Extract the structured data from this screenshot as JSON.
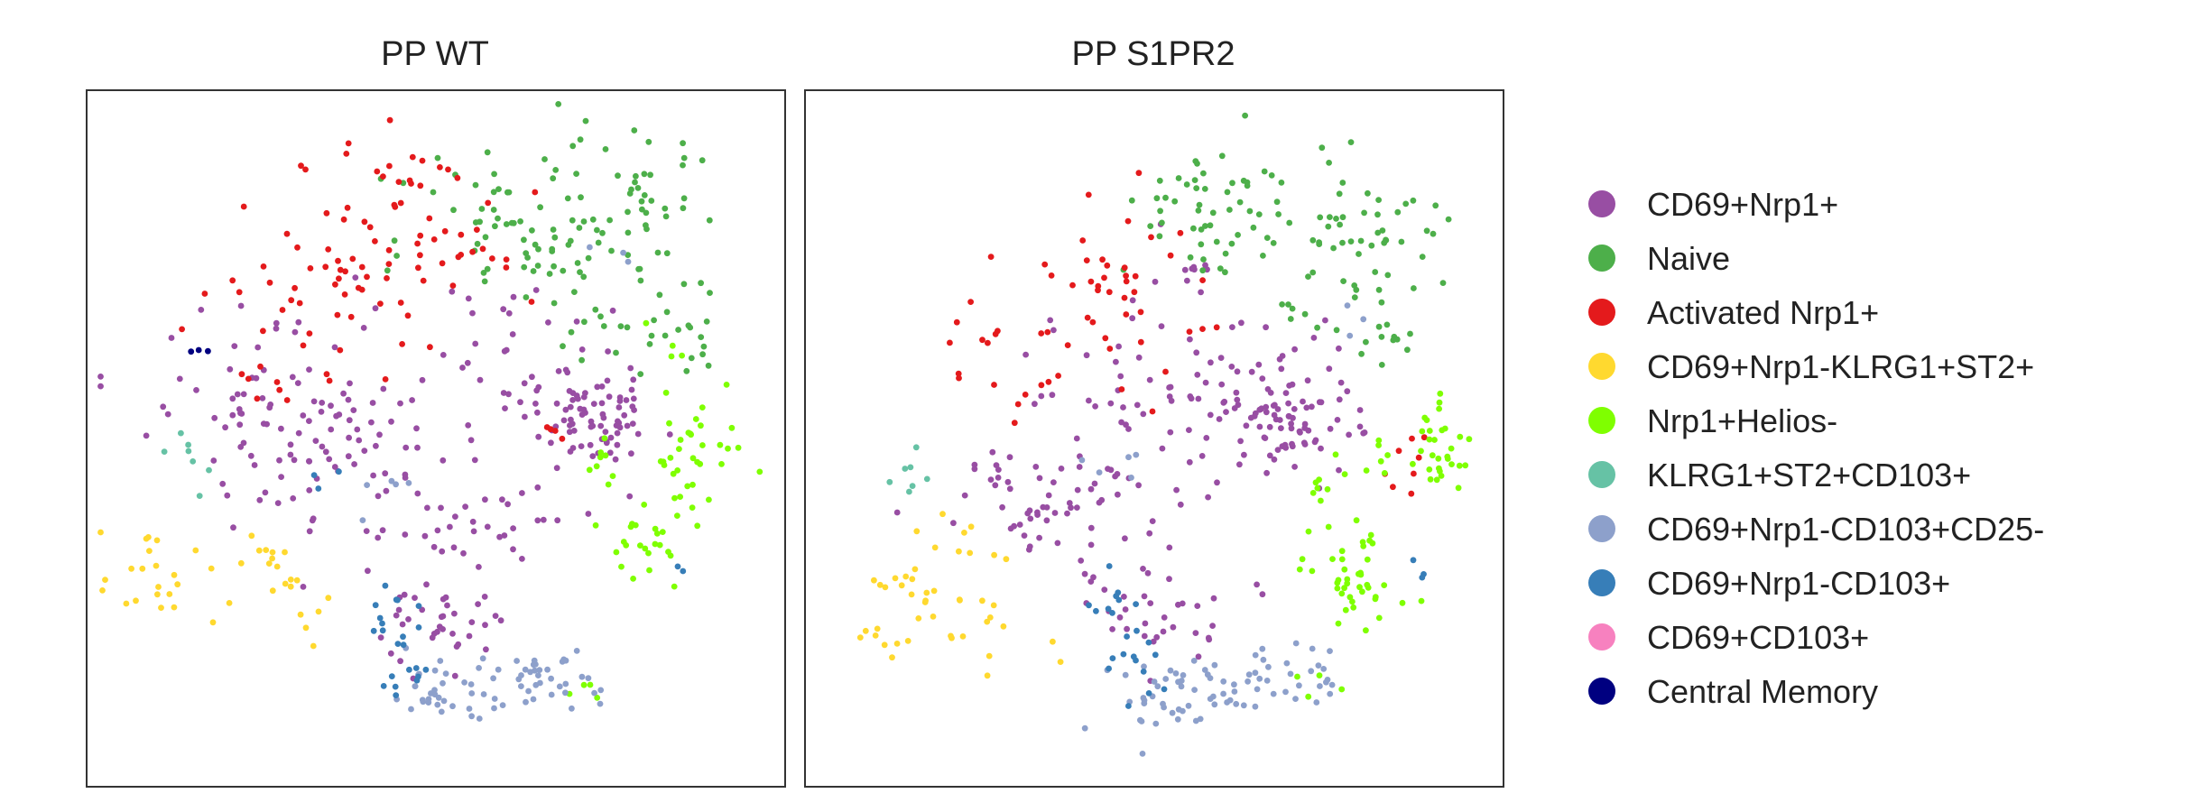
{
  "chart_data": {
    "type": "scatter",
    "panels": [
      {
        "title": "PP WT",
        "clusters": [
          {
            "name": "CD69+Nrp1+",
            "blobs": [
              [
                19,
                43,
                45,
                12,
                8
              ],
              [
                34,
                52,
                30,
                8,
                6
              ],
              [
                52,
                62,
                45,
                14,
                7
              ],
              [
                70,
                46,
                35,
                6,
                4
              ],
              [
                75,
                47,
                45,
                8,
                7
              ],
              [
                41,
                45,
                25,
                12,
                10
              ],
              [
                58,
                35,
                25,
                10,
                8
              ],
              [
                29,
                58,
                10,
                6,
                5
              ],
              [
                48,
                75,
                20,
                6,
                5
              ],
              [
                51,
                78,
                15,
                5,
                4
              ]
            ]
          },
          {
            "name": "Naive",
            "blobs": [
              [
                60,
                17,
                60,
                10,
                8
              ],
              [
                80,
                17,
                45,
                8,
                8
              ],
              [
                86,
                33,
                15,
                3,
                5
              ],
              [
                76,
                36,
                12,
                7,
                4
              ],
              [
                68,
                27,
                10,
                6,
                6
              ]
            ]
          },
          {
            "name": "Activated Nrp1+",
            "blobs": [
              [
                40,
                26,
                55,
                11,
                9
              ],
              [
                45,
                13,
                20,
                12,
                4
              ],
              [
                57,
                23,
                10,
                4,
                4
              ],
              [
                30,
                42,
                8,
                6,
                3
              ],
              [
                22,
                29,
                6,
                6,
                4
              ],
              [
                67,
                48,
                4,
                2,
                2
              ]
            ]
          },
          {
            "name": "CD69+Nrp1-KLRG1+ST2+",
            "blobs": [
              [
                12,
                71,
                20,
                7,
                6
              ],
              [
                29,
                74,
                12,
                4,
                5
              ],
              [
                25,
                66,
                6,
                4,
                3
              ],
              [
                11,
                71,
                4,
                3,
                3
              ]
            ]
          },
          {
            "name": "Nrp1+Helios-",
            "blobs": [
              [
                75,
                53,
                8,
                3,
                3
              ],
              [
                88,
                51,
                25,
                4,
                6
              ],
              [
                80,
                65,
                25,
                5,
                5
              ],
              [
                81,
                55,
                6,
                3,
                3
              ],
              [
                83,
                39,
                5,
                3,
                4
              ],
              [
                70,
                86,
                4,
                4,
                2
              ]
            ]
          },
          {
            "name": "KLRG1+ST2+CD103+",
            "blobs": [
              [
                14,
                55,
                7,
                6,
                5
              ]
            ]
          },
          {
            "name": "CD69+Nrp1-CD103+CD25-",
            "blobs": [
              [
                53,
                87,
                35,
                6,
                3
              ],
              [
                68,
                85,
                25,
                5,
                3
              ],
              [
                62,
                83,
                10,
                6,
                3
              ],
              [
                42,
                57,
                5,
                5,
                3
              ],
              [
                73,
                23,
                3,
                3,
                3
              ]
            ]
          },
          {
            "name": "CD69+Nrp1-CD103+",
            "blobs": [
              [
                44,
                76,
                12,
                3,
                3
              ],
              [
                46,
                84,
                10,
                3,
                3
              ],
              [
                34,
                56,
                3,
                3,
                3
              ],
              [
                85,
                68,
                2,
                2,
                2
              ]
            ]
          },
          {
            "name": "CD69+CD103+",
            "blobs": []
          },
          {
            "name": "Central Memory",
            "blobs": [
              [
                18,
                37,
                3,
                4,
                2
              ]
            ]
          }
        ]
      },
      {
        "title": "PP S1PR2",
        "clusters": [
          {
            "name": "CD69+Nrp1+",
            "blobs": [
              [
                43,
                55,
                35,
                12,
                8
              ],
              [
                30,
                59,
                25,
                10,
                5
              ],
              [
                60,
                44,
                40,
                9,
                7
              ],
              [
                68,
                47,
                30,
                5,
                4
              ],
              [
                69,
                48,
                45,
                8,
                6
              ],
              [
                43,
                41,
                25,
                12,
                8
              ],
              [
                46,
                75,
                20,
                8,
                6
              ],
              [
                57,
                74,
                15,
                6,
                5
              ],
              [
                38,
                66,
                10,
                7,
                5
              ],
              [
                56,
                28,
                5,
                3,
                3
              ],
              [
                52,
                25,
                5,
                3,
                3
              ]
            ]
          },
          {
            "name": "Naive",
            "blobs": [
              [
                59,
                17,
                50,
                8,
                6
              ],
              [
                80,
                20,
                50,
                8,
                8
              ],
              [
                83,
                36,
                12,
                3,
                5
              ],
              [
                69,
                32,
                6,
                4,
                3
              ],
              [
                58,
                24,
                6,
                4,
                3
              ]
            ]
          },
          {
            "name": "Activated Nrp1+",
            "blobs": [
              [
                42,
                29,
                45,
                11,
                8
              ],
              [
                30,
                42,
                8,
                4,
                4
              ],
              [
                23,
                37,
                5,
                4,
                3
              ],
              [
                88,
                50,
                4,
                2,
                2
              ],
              [
                85,
                56,
                4,
                2,
                2
              ]
            ]
          },
          {
            "name": "CD69+Nrp1-KLRG1+ST2+",
            "blobs": [
              [
                14,
                73,
                25,
                5,
                6
              ],
              [
                26,
                76,
                12,
                5,
                5
              ],
              [
                23,
                63,
                5,
                2,
                3
              ],
              [
                31,
                81,
                4,
                4,
                3
              ]
            ]
          },
          {
            "name": "Nrp1+Helios-",
            "blobs": [
              [
                79,
                68,
                45,
                5,
                6
              ],
              [
                91,
                53,
                30,
                3,
                6
              ],
              [
                73,
                55,
                6,
                3,
                3
              ],
              [
                83,
                51,
                5,
                3,
                3
              ],
              [
                74,
                85,
                4,
                4,
                2
              ]
            ]
          },
          {
            "name": "KLRG1+ST2+CD103+",
            "blobs": [
              [
                16,
                55,
                7,
                4,
                3
              ]
            ]
          },
          {
            "name": "CD69+Nrp1-CD103+CD25-",
            "blobs": [
              [
                52,
                87,
                40,
                7,
                4
              ],
              [
                71,
                84,
                25,
                5,
                3
              ],
              [
                61,
                86,
                12,
                5,
                3
              ],
              [
                44,
                55,
                5,
                5,
                3
              ],
              [
                79,
                33,
                3,
                3,
                3
              ]
            ]
          },
          {
            "name": "CD69+Nrp1-CD103+",
            "blobs": [
              [
                45,
                74,
                12,
                4,
                3
              ],
              [
                45,
                84,
                10,
                4,
                3
              ],
              [
                87,
                70,
                3,
                2,
                2
              ]
            ]
          },
          {
            "name": "CD69+CD103+",
            "blobs": []
          },
          {
            "name": "Central Memory",
            "blobs": []
          }
        ]
      }
    ],
    "xlabel": "",
    "ylabel": "",
    "xlim": [
      0,
      100
    ],
    "ylim": [
      0,
      100
    ],
    "grid": false,
    "axes_ticks": false,
    "legend_position": "right",
    "legend": [
      {
        "name": "CD69+Nrp1+",
        "color": "#984ea3"
      },
      {
        "name": "Naive",
        "color": "#4daf4a"
      },
      {
        "name": "Activated Nrp1+",
        "color": "#e41a1c"
      },
      {
        "name": "CD69+Nrp1-KLRG1+ST2+",
        "color": "#ffd92f"
      },
      {
        "name": "Nrp1+Helios-",
        "color": "#7fff00"
      },
      {
        "name": "KLRG1+ST2+CD103+",
        "color": "#66c2a5"
      },
      {
        "name": "CD69+Nrp1-CD103+CD25-",
        "color": "#8da0cb"
      },
      {
        "name": "CD69+Nrp1-CD103+",
        "color": "#377eb8"
      },
      {
        "name": "CD69+CD103+",
        "color": "#f781bf"
      },
      {
        "name": "Central Memory",
        "color": "#000080"
      }
    ]
  }
}
